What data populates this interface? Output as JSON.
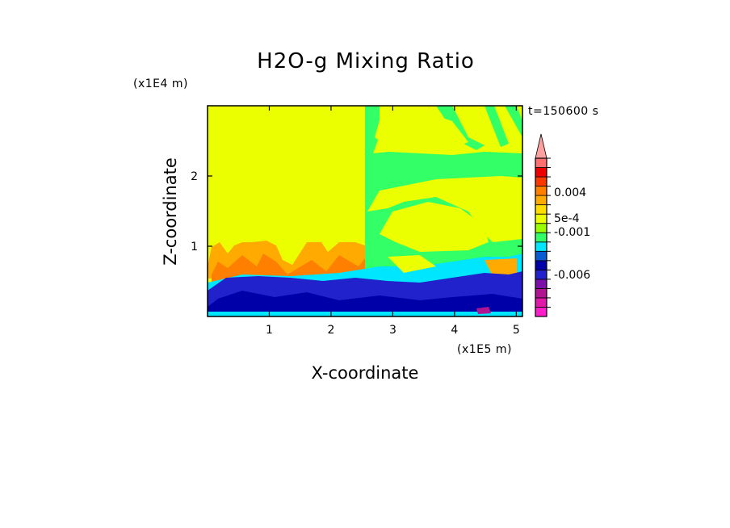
{
  "chart_data": {
    "type": "heatmap",
    "title": "H2O-g Mixing Ratio",
    "xlabel": "X-coordinate",
    "ylabel": "Z-coordinate",
    "x_unit": "(x1E5 m)",
    "y_unit": "(x1E4 m)",
    "time_label": "t=150600 s",
    "xlim": [
      0,
      5.1
    ],
    "ylim": [
      0,
      3
    ],
    "x_ticks": [
      "1",
      "2",
      "3",
      "4",
      "5"
    ],
    "y_ticks": [
      "1",
      "2"
    ],
    "colorbar": {
      "colors": [
        "#ff1ec8",
        "#e01aa8",
        "#b01490",
        "#7a10a8",
        "#2222cc",
        "#0000a8",
        "#0a5ad2",
        "#00e6ff",
        "#33ff66",
        "#99ff00",
        "#ecff00",
        "#ffdd00",
        "#ffaa00",
        "#ff7f00",
        "#ff3800",
        "#ee0000",
        "#ff7070",
        "#ffa0a0"
      ],
      "tick_labels": [
        "-0.006",
        "-0.001",
        "5e-4",
        "0.004"
      ],
      "extend": "max"
    },
    "regions_note": "Z above ~0.8 mostly yellow near 0; green band right of x~2.6; blue/negative values below z~0.6; orange plumes near z~0.7-1.0"
  }
}
